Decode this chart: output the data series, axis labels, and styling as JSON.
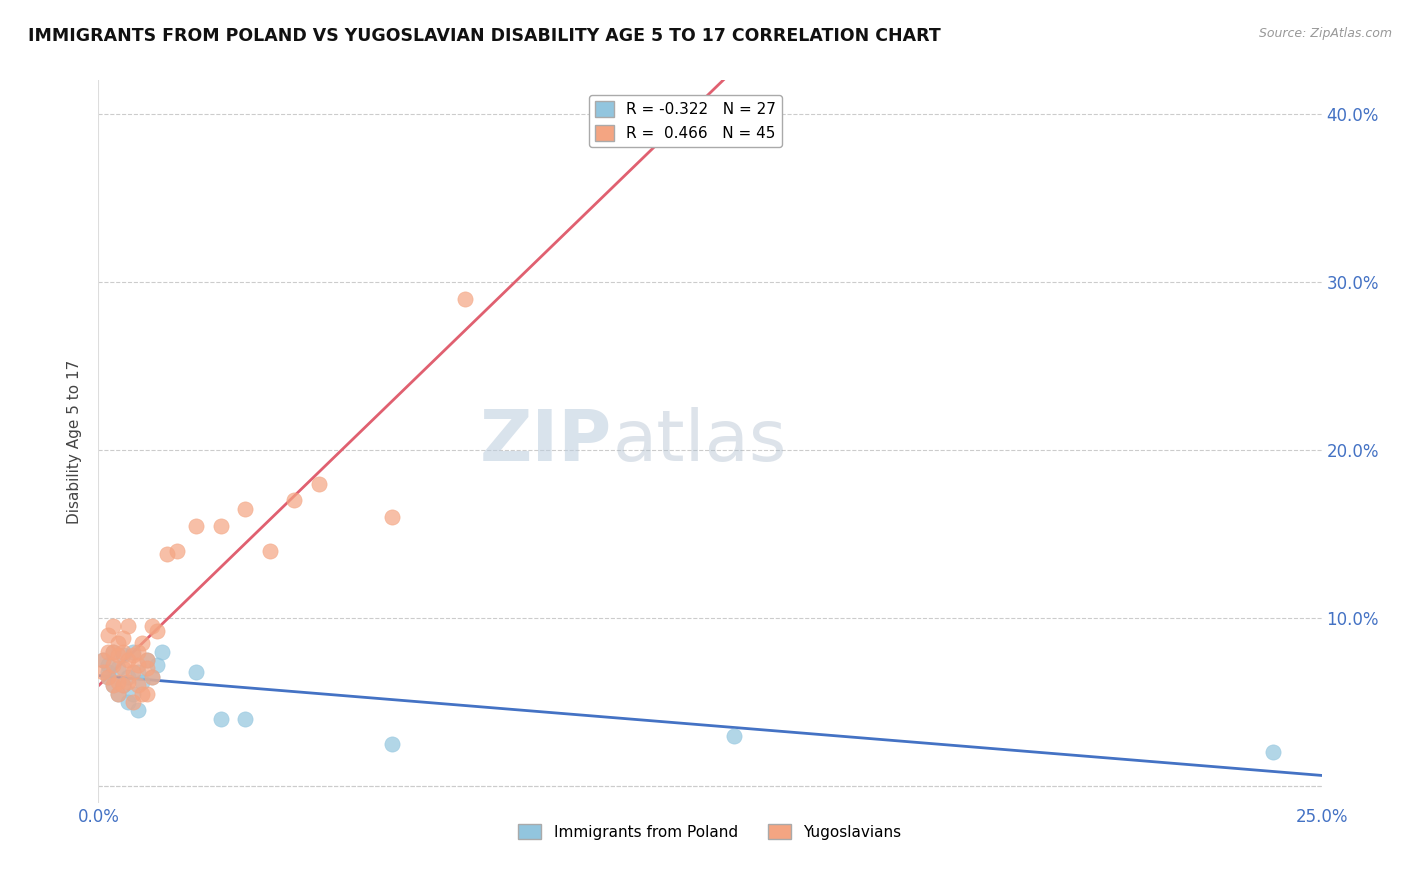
{
  "title": "IMMIGRANTS FROM POLAND VS YUGOSLAVIAN DISABILITY AGE 5 TO 17 CORRELATION CHART",
  "source": "Source: ZipAtlas.com",
  "xlabel_series1": "Immigrants from Poland",
  "xlabel_series2": "Yugoslavians",
  "ylabel": "Disability Age 5 to 17",
  "xlim": [
    0.0,
    0.25
  ],
  "ylim": [
    -0.01,
    0.42
  ],
  "xtick_labels": [
    "0.0%",
    "",
    "",
    "",
    "",
    "",
    "",
    "",
    "",
    "",
    "",
    "",
    "",
    "",
    "",
    "",
    "",
    "",
    "",
    "",
    "",
    "",
    "",
    "",
    "",
    "25.0%"
  ],
  "xtick_vals": [
    0.0,
    0.01,
    0.02,
    0.03,
    0.04,
    0.05,
    0.06,
    0.07,
    0.08,
    0.09,
    0.1,
    0.11,
    0.12,
    0.13,
    0.14,
    0.15,
    0.16,
    0.17,
    0.18,
    0.19,
    0.2,
    0.21,
    0.22,
    0.23,
    0.24,
    0.25
  ],
  "ytick_labels": [
    "",
    "10.0%",
    "20.0%",
    "30.0%",
    "40.0%"
  ],
  "ytick_vals": [
    0.0,
    0.1,
    0.2,
    0.3,
    0.4
  ],
  "r1": "-0.322",
  "n1": "27",
  "r2": "0.466",
  "n2": "45",
  "color1": "#92C5DE",
  "color2": "#F4A582",
  "trendline1_color": "#4472C4",
  "trendline2_color": "#E06070",
  "poland_x": [
    0.001,
    0.002,
    0.002,
    0.002,
    0.003,
    0.003,
    0.004,
    0.004,
    0.005,
    0.005,
    0.006,
    0.006,
    0.007,
    0.007,
    0.008,
    0.008,
    0.009,
    0.01,
    0.011,
    0.012,
    0.013,
    0.02,
    0.025,
    0.03,
    0.06,
    0.13,
    0.24
  ],
  "poland_y": [
    0.075,
    0.072,
    0.068,
    0.065,
    0.08,
    0.06,
    0.07,
    0.055,
    0.078,
    0.06,
    0.065,
    0.05,
    0.08,
    0.055,
    0.068,
    0.045,
    0.062,
    0.075,
    0.065,
    0.072,
    0.08,
    0.068,
    0.04,
    0.04,
    0.025,
    0.03,
    0.02
  ],
  "yugo_x": [
    0.001,
    0.001,
    0.002,
    0.002,
    0.002,
    0.003,
    0.003,
    0.003,
    0.003,
    0.004,
    0.004,
    0.004,
    0.004,
    0.005,
    0.005,
    0.005,
    0.005,
    0.006,
    0.006,
    0.006,
    0.007,
    0.007,
    0.007,
    0.008,
    0.008,
    0.008,
    0.009,
    0.009,
    0.01,
    0.01,
    0.01,
    0.011,
    0.011,
    0.012,
    0.014,
    0.016,
    0.02,
    0.025,
    0.03,
    0.035,
    0.04,
    0.045,
    0.06,
    0.075,
    0.11
  ],
  "yugo_y": [
    0.068,
    0.075,
    0.08,
    0.065,
    0.09,
    0.06,
    0.072,
    0.08,
    0.095,
    0.062,
    0.078,
    0.085,
    0.055,
    0.07,
    0.08,
    0.088,
    0.06,
    0.075,
    0.062,
    0.095,
    0.068,
    0.078,
    0.05,
    0.072,
    0.06,
    0.08,
    0.055,
    0.085,
    0.07,
    0.075,
    0.055,
    0.095,
    0.065,
    0.092,
    0.138,
    0.14,
    0.155,
    0.155,
    0.165,
    0.14,
    0.17,
    0.18,
    0.16,
    0.29,
    0.39
  ]
}
